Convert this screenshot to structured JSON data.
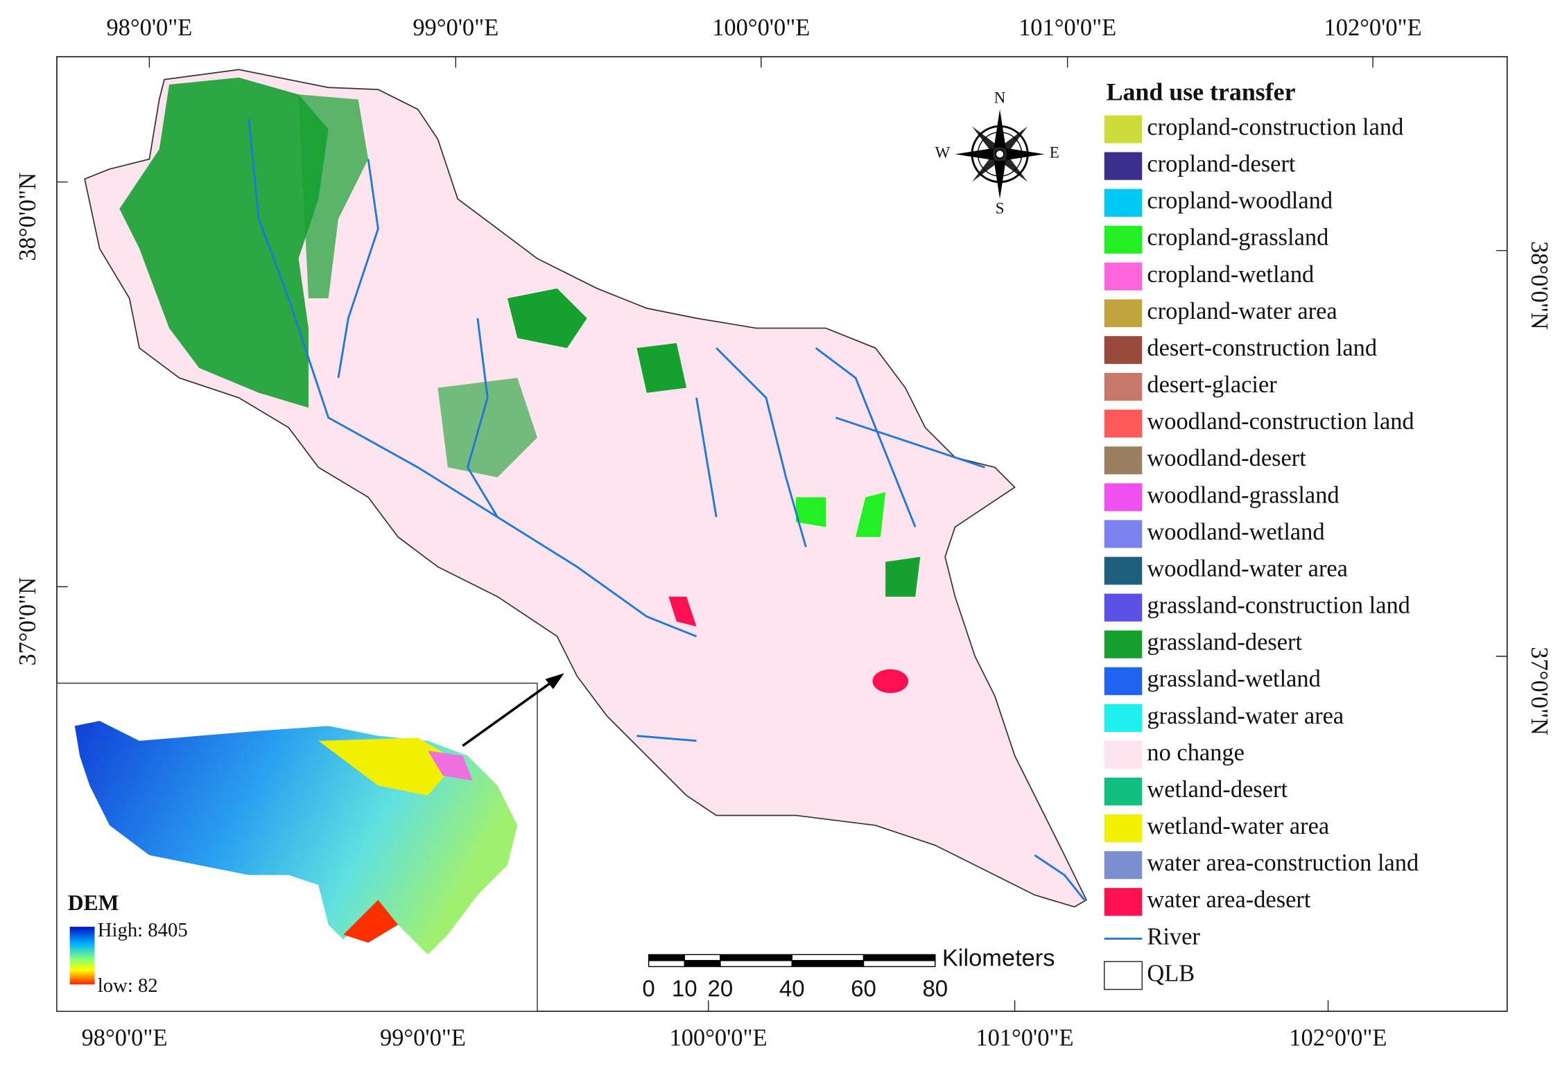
{
  "graticule": {
    "top": [
      "98°0'0\"E",
      "99°0'0\"E",
      "100°0'0\"E",
      "101°0'0\"E",
      "102°0'0\"E"
    ],
    "bottom": [
      "98°0'0\"E",
      "99°0'0\"E",
      "100°0'0\"E",
      "101°0'0\"E",
      "102°0'0\"E"
    ],
    "left": [
      "38°0'0\"N",
      "37°0'0\"N"
    ],
    "right": [
      "38°0'0\"N",
      "37°0'0\"N"
    ]
  },
  "legend": {
    "title": "Land use transfer",
    "items": [
      {
        "label": "cropland-construction land",
        "color": "#cddc39",
        "swatch": "fill"
      },
      {
        "label": "cropland-desert",
        "color": "#3a2f8f",
        "swatch": "fill"
      },
      {
        "label": "cropland-woodland",
        "color": "#00c8f5",
        "swatch": "fill"
      },
      {
        "label": "cropland-grassland",
        "color": "#22f022",
        "swatch": "fill"
      },
      {
        "label": "cropland-wetland",
        "color": "#ff66dd",
        "swatch": "fill"
      },
      {
        "label": "cropland-water area",
        "color": "#c2a43c",
        "swatch": "fill"
      },
      {
        "label": "desert-construction land",
        "color": "#9a4a3c",
        "swatch": "fill"
      },
      {
        "label": "desert-glacier",
        "color": "#c8786a",
        "swatch": "fill"
      },
      {
        "label": "woodland-construction land",
        "color": "#ff5a5a",
        "swatch": "fill"
      },
      {
        "label": "woodland-desert",
        "color": "#9a8060",
        "swatch": "fill"
      },
      {
        "label": "woodland-grassland",
        "color": "#f050f0",
        "swatch": "fill"
      },
      {
        "label": "woodland-wetland",
        "color": "#7a82f0",
        "swatch": "fill"
      },
      {
        "label": "woodland-water area",
        "color": "#1e5f7e",
        "swatch": "fill"
      },
      {
        "label": "grassland-construction land",
        "color": "#5a50e6",
        "swatch": "fill"
      },
      {
        "label": "grassland-desert",
        "color": "#16a030",
        "swatch": "fill"
      },
      {
        "label": "grassland-wetland",
        "color": "#1e64f0",
        "swatch": "fill"
      },
      {
        "label": "grassland-water area",
        "color": "#1ef0f0",
        "swatch": "fill"
      },
      {
        "label": "no change",
        "color": "#fde4ee",
        "swatch": "fill"
      },
      {
        "label": "wetland-desert",
        "color": "#10c080",
        "swatch": "fill"
      },
      {
        "label": "wetland-water area",
        "color": "#f0f000",
        "swatch": "fill"
      },
      {
        "label": "water area-construction land",
        "color": "#7a8ed0",
        "swatch": "fill"
      },
      {
        "label": "water area-desert",
        "color": "#ff1050",
        "swatch": "fill"
      },
      {
        "label": "River",
        "color": "#1f78d8",
        "swatch": "line"
      },
      {
        "label": "QLB",
        "color": "#222222",
        "swatch": "outline"
      }
    ]
  },
  "scale_bar": {
    "unit": "Kilometers",
    "ticks": [
      0,
      10,
      20,
      40,
      60,
      80
    ]
  },
  "compass": {
    "n": "N",
    "e": "E",
    "s": "S",
    "w": "W"
  },
  "inset": {
    "title": "DEM",
    "high": "High: 8405",
    "low": "low: 82"
  }
}
